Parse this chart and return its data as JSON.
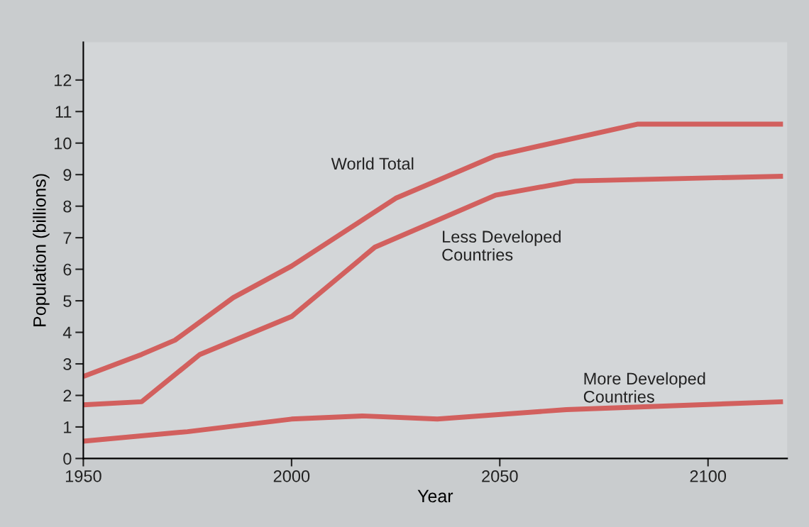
{
  "chart_data": {
    "type": "line",
    "xlabel": "Year",
    "ylabel": "Population (billions)",
    "xlim": [
      1950,
      2119
    ],
    "xticks": [
      1950,
      2000,
      2050,
      2100
    ],
    "ylim": [
      0,
      13.2
    ],
    "yticks": [
      0,
      1,
      2,
      3,
      4,
      5,
      6,
      7,
      8,
      9,
      10,
      11,
      12
    ],
    "grid": false,
    "legend": false,
    "marker": "none",
    "line_style": "solid",
    "series": [
      {
        "name": "World Total",
        "color": "#d2605e",
        "x": [
          1950,
          1964,
          1972,
          1986,
          2000,
          2025,
          2049,
          2083,
          2118
        ],
        "values": [
          2.6,
          3.3,
          3.75,
          5.1,
          6.1,
          8.25,
          9.6,
          10.6,
          10.6
        ]
      },
      {
        "name": "Less Developed\nCountries",
        "color": "#d2605e",
        "x": [
          1950,
          1964,
          1978,
          2000,
          2020,
          2049,
          2068,
          2118
        ],
        "values": [
          1.7,
          1.8,
          3.3,
          4.5,
          6.7,
          8.35,
          8.8,
          8.95
        ]
      },
      {
        "name": "More Developed\nCountries",
        "color": "#d2605e",
        "x": [
          1950,
          1975,
          2000,
          2017,
          2035,
          2066,
          2118
        ],
        "values": [
          0.55,
          0.85,
          1.25,
          1.35,
          1.25,
          1.55,
          1.8
        ]
      }
    ]
  }
}
